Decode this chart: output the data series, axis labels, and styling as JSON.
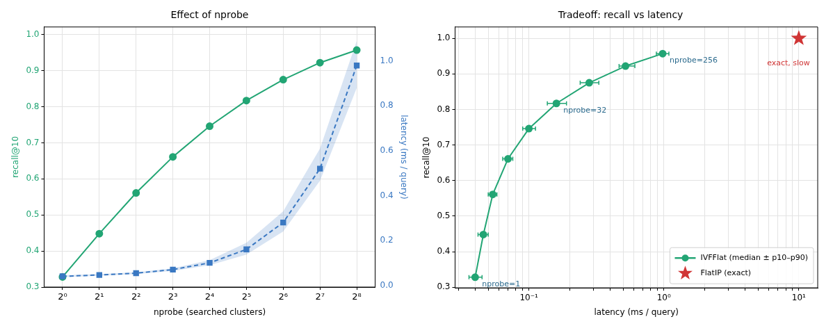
{
  "chart_data": [
    {
      "type": "line",
      "title": "Effect of nprobe",
      "xlabel": "nprobe (searched clusters)",
      "ylabel": "recall@10",
      "y2label": "latency (ms / query)",
      "categories": [
        "2⁰",
        "2¹",
        "2²",
        "2³",
        "2⁴",
        "2⁵",
        "2⁶",
        "2⁷",
        "2⁸"
      ],
      "series": [
        {
          "color": "#22a574",
          "marker": "circle",
          "line_style": "solid",
          "values": [
            0.328,
            0.448,
            0.561,
            0.661,
            0.746,
            0.817,
            0.875,
            0.922,
            0.957
          ]
        },
        {
          "color": "#3a78c2",
          "marker": "square",
          "line_style": "dashed",
          "axis": "y2",
          "values": [
            0.04,
            0.046,
            0.054,
            0.07,
            0.1,
            0.16,
            0.28,
            0.52,
            0.98
          ],
          "lower": [
            0.036,
            0.042,
            0.05,
            0.064,
            0.09,
            0.137,
            0.24,
            0.466,
            0.88
          ],
          "upper": [
            0.045,
            0.05,
            0.058,
            0.076,
            0.112,
            0.19,
            0.33,
            0.61,
            1.09
          ]
        }
      ],
      "ylim": [
        0.3,
        1.021
      ],
      "yticks": [
        0.3,
        0.4,
        0.5,
        0.6,
        0.7,
        0.8,
        0.9,
        {
          "value": 1,
          "label": "1.0"
        }
      ],
      "y2lim": [
        -0.008,
        1.152
      ],
      "y2ticks": [
        {
          "value": 0,
          "label": "0.0"
        },
        0.2,
        0.4,
        0.6,
        0.8,
        {
          "value": 1,
          "label": "1.0"
        }
      ],
      "grid": true
    },
    {
      "type": "line",
      "title": "Tradeoff: recall vs latency",
      "xlabel": "latency (ms / query)",
      "ylabel": "recall@10",
      "log": "x",
      "series": [
        {
          "name": "IVFFlat (median ± p10–p90)",
          "color": "#22a574",
          "marker": "circle",
          "line_style": "solid",
          "x": [
            0.04,
            0.046,
            0.054,
            0.07,
            0.1,
            0.16,
            0.28,
            0.52,
            0.98
          ],
          "values": [
            0.328,
            0.448,
            0.561,
            0.661,
            0.746,
            0.817,
            0.875,
            0.922,
            0.957
          ],
          "xerrors": [
            [
              0.036,
              0.045
            ],
            [
              0.042,
              0.05
            ],
            [
              0.05,
              0.058
            ],
            [
              0.064,
              0.076
            ],
            [
              0.09,
              0.112
            ],
            [
              0.137,
              0.19
            ],
            [
              0.24,
              0.33
            ],
            [
              0.466,
              0.61
            ],
            [
              0.88,
              1.09
            ]
          ]
        },
        {
          "name": "FlatIP (exact)",
          "type": "scatter",
          "color": "#d03535",
          "marker": "star",
          "x": [
            10
          ],
          "values": [
            1
          ]
        }
      ],
      "annotations": [
        {
          "text": "nprobe=1",
          "x": 0.04,
          "y": 0.328
        },
        {
          "text": "nprobe=32",
          "x": 0.16,
          "y": 0.817
        },
        {
          "text": "nprobe=256",
          "x": 0.98,
          "y": 0.957
        },
        {
          "text": "exact, slow",
          "x": 10,
          "y": 1
        }
      ],
      "xlim": [
        0.0284,
        13.8
      ],
      "xticks": [
        {
          "value": 0.03,
          "label": null
        },
        {
          "value": 0.04,
          "label": null
        },
        {
          "value": 0.05,
          "label": null
        },
        {
          "value": 0.06,
          "label": null
        },
        {
          "value": 0.07,
          "label": null
        },
        {
          "value": 0.08,
          "label": null
        },
        {
          "value": 0.09,
          "label": null
        },
        {
          "value": 0.1,
          "label": "10⁻¹"
        },
        {
          "value": 0.2,
          "label": null
        },
        {
          "value": 0.3,
          "label": null
        },
        {
          "value": 0.4,
          "label": null
        },
        {
          "value": 0.5,
          "label": null
        },
        {
          "value": 0.6,
          "label": null
        },
        {
          "value": 0.7,
          "label": null
        },
        {
          "value": 0.8,
          "label": null
        },
        {
          "value": 0.9,
          "label": null
        },
        {
          "value": 1,
          "label": "10⁰"
        },
        {
          "value": 2,
          "label": null
        },
        {
          "value": 3,
          "label": null
        },
        {
          "value": 4,
          "label": null
        },
        {
          "value": 5,
          "label": null
        },
        {
          "value": 6,
          "label": null
        },
        {
          "value": 7,
          "label": null
        },
        {
          "value": 8,
          "label": null
        },
        {
          "value": 9,
          "label": null
        },
        {
          "value": 10,
          "label": "10¹"
        }
      ],
      "ylim": [
        0.298,
        1.032
      ],
      "yticks": [
        0.3,
        0.4,
        0.5,
        0.6,
        0.7,
        0.8,
        0.9,
        {
          "value": 1,
          "label": "1.0"
        }
      ],
      "grid": true,
      "legend": "bottom right"
    }
  ]
}
